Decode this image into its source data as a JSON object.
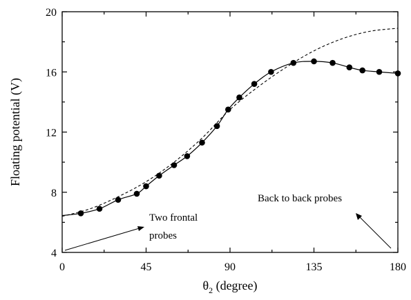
{
  "chart_data": {
    "type": "line",
    "xlabel": {
      "symbol": "θ",
      "subscript": "2",
      "rest": " (degree)"
    },
    "ylabel": "Floating potential (V)",
    "xlim": [
      0,
      180
    ],
    "ylim": [
      4,
      20
    ],
    "x_ticks": [
      0,
      45,
      90,
      135,
      180
    ],
    "y_ticks": [
      4,
      8,
      12,
      16,
      20
    ],
    "grid": false,
    "series": [
      {
        "style": "solid-with-circle-markers",
        "x": [
          10,
          20,
          30,
          40,
          45,
          52,
          60,
          67,
          75,
          83,
          89,
          95,
          103,
          112,
          124,
          135,
          145,
          154,
          161,
          170,
          180
        ],
        "y": [
          6.6,
          6.9,
          7.5,
          7.9,
          8.4,
          9.1,
          9.8,
          10.4,
          11.3,
          12.4,
          13.5,
          14.3,
          15.2,
          16.0,
          16.6,
          16.7,
          16.6,
          16.3,
          16.1,
          16.0,
          15.9
        ]
      },
      {
        "style": "dashed",
        "x": [
          0,
          15,
          30,
          45,
          60,
          75,
          90,
          105,
          120,
          135,
          150,
          165,
          180
        ],
        "y": [
          6.4,
          6.9,
          7.7,
          8.7,
          10.0,
          11.6,
          13.5,
          15.0,
          16.3,
          17.4,
          18.2,
          18.7,
          18.9
        ]
      }
    ],
    "annotations": [
      {
        "lines": [
          "Two frontal",
          "probes"
        ]
      },
      {
        "lines": [
          "Back to back probes"
        ]
      }
    ]
  }
}
